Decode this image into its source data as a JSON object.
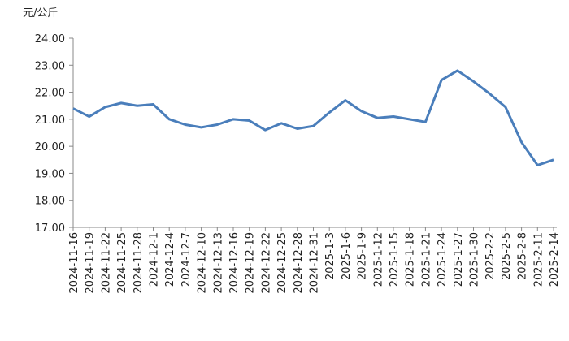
{
  "chart_data": {
    "type": "line",
    "y_axis_label": "元/公斤",
    "categories": [
      "2024-11-16",
      "2024-11-19",
      "2024-11-22",
      "2024-11-25",
      "2024-11-28",
      "2024-12-1",
      "2024-12-4",
      "2024-12-7",
      "2024-12-10",
      "2024-12-13",
      "2024-12-16",
      "2024-12-19",
      "2024-12-22",
      "2024-12-25",
      "2024-12-28",
      "2024-12-31",
      "2025-1-3",
      "2025-1-6",
      "2025-1-9",
      "2025-1-12",
      "2025-1-15",
      "2025-1-18",
      "2025-1-21",
      "2025-1-24",
      "2025-1-27",
      "2025-1-30",
      "2025-2-2",
      "2025-2-5",
      "2025-2-8",
      "2025-2-11",
      "2025-2-14"
    ],
    "values": [
      21.4,
      21.1,
      21.45,
      21.6,
      21.5,
      21.55,
      21.0,
      20.8,
      20.7,
      20.8,
      21.0,
      20.95,
      20.6,
      20.85,
      20.65,
      20.75,
      21.25,
      21.7,
      21.3,
      21.05,
      21.1,
      21.0,
      20.9,
      22.45,
      22.8,
      22.4,
      21.95,
      21.45,
      20.15,
      19.3,
      19.5
    ],
    "color": "#4a7ebb",
    "ylim": [
      17,
      24
    ],
    "yticks": [
      {
        "value": 17,
        "label": "17.00"
      },
      {
        "value": 18,
        "label": "18.00"
      },
      {
        "value": 19,
        "label": "19.00"
      },
      {
        "value": 20,
        "label": "20.00"
      },
      {
        "value": 21,
        "label": "21.00"
      },
      {
        "value": 22,
        "label": "22.00"
      },
      {
        "value": 23,
        "label": "23.00"
      },
      {
        "value": 24,
        "label": "24.00"
      }
    ],
    "grid": false
  }
}
